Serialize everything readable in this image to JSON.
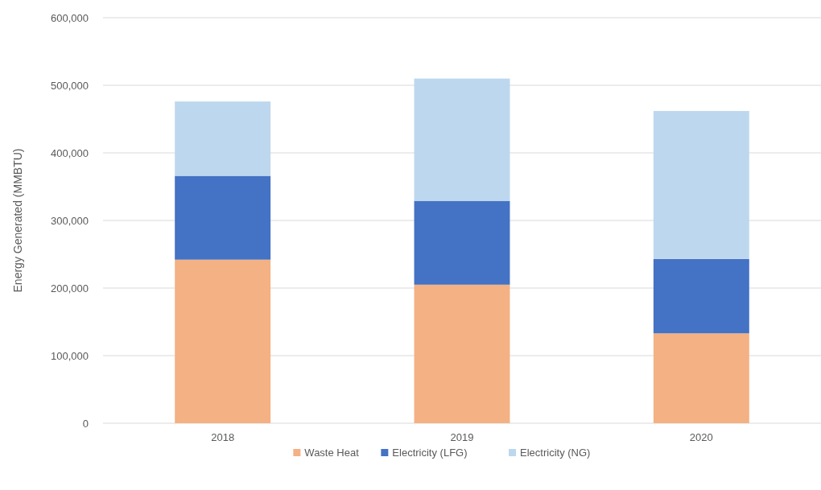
{
  "chart_data": {
    "type": "bar",
    "stacked": true,
    "ylabel": "Energy Generated (MMBTU)",
    "categories": [
      "2018",
      "2019",
      "2020"
    ],
    "series": [
      {
        "name": "Waste Heat",
        "color": "#f4b183",
        "values": [
          242000,
          205000,
          133000
        ]
      },
      {
        "name": "Electricity (LFG)",
        "color": "#4472c4",
        "values": [
          124000,
          124000,
          110000
        ]
      },
      {
        "name": "Electricity (NG)",
        "color": "#bdd7ee",
        "values": [
          110000,
          181000,
          219000
        ]
      }
    ],
    "ylim": [
      0,
      600000
    ],
    "yticks": [
      0,
      {
        "value": 100000,
        "label": "100,000"
      },
      {
        "value": 200000,
        "label": "200,000"
      },
      {
        "value": 300000,
        "label": "300,000"
      },
      {
        "value": 400000,
        "label": "400,000"
      },
      {
        "value": 500000,
        "label": "500,000"
      },
      {
        "value": 600000,
        "label": "600,000"
      }
    ],
    "grid": true,
    "legend": "bottom"
  }
}
